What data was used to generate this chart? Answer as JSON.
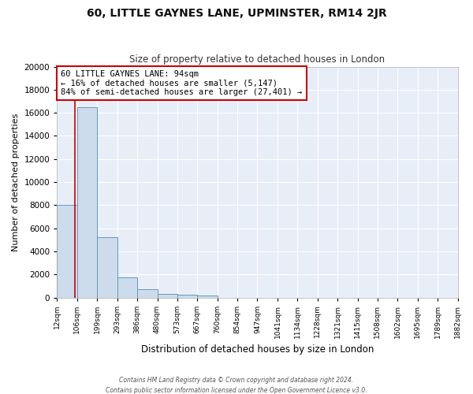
{
  "title": "60, LITTLE GAYNES LANE, UPMINSTER, RM14 2JR",
  "subtitle": "Size of property relative to detached houses in London",
  "xlabel": "Distribution of detached houses by size in London",
  "ylabel": "Number of detached properties",
  "footer_line1": "Contains HM Land Registry data © Crown copyright and database right 2024.",
  "footer_line2": "Contains public sector information licensed under the Open Government Licence v3.0.",
  "bin_edges": [
    12,
    106,
    199,
    293,
    386,
    480,
    573,
    667,
    760,
    854,
    947,
    1041,
    1134,
    1228,
    1321,
    1415,
    1508,
    1602,
    1695,
    1789,
    1882
  ],
  "bar_heights": [
    8050,
    16500,
    5200,
    1750,
    750,
    300,
    250,
    175,
    0,
    0,
    0,
    0,
    0,
    0,
    0,
    0,
    0,
    0,
    0,
    0
  ],
  "bar_color": "#ccdcec",
  "bar_edge_color": "#6699bb",
  "bg_color": "#e8eef8",
  "grid_color": "#ffffff",
  "fig_bg_color": "#ffffff",
  "property_size": 94,
  "red_line_color": "#cc0000",
  "annotation_line1": "60 LITTLE GAYNES LANE: 94sqm",
  "annotation_line2": "← 16% of detached houses are smaller (5,147)",
  "annotation_line3": "84% of semi-detached houses are larger (27,401) →",
  "annotation_box_color": "#ffffff",
  "annotation_border_color": "#cc0000",
  "ylim": [
    0,
    20000
  ],
  "yticks": [
    0,
    2000,
    4000,
    6000,
    8000,
    10000,
    12000,
    14000,
    16000,
    18000,
    20000
  ],
  "tick_labels": [
    "12sqm",
    "106sqm",
    "199sqm",
    "293sqm",
    "386sqm",
    "480sqm",
    "573sqm",
    "667sqm",
    "760sqm",
    "854sqm",
    "947sqm",
    "1041sqm",
    "1134sqm",
    "1228sqm",
    "1321sqm",
    "1415sqm",
    "1508sqm",
    "1602sqm",
    "1695sqm",
    "1789sqm",
    "1882sqm"
  ]
}
